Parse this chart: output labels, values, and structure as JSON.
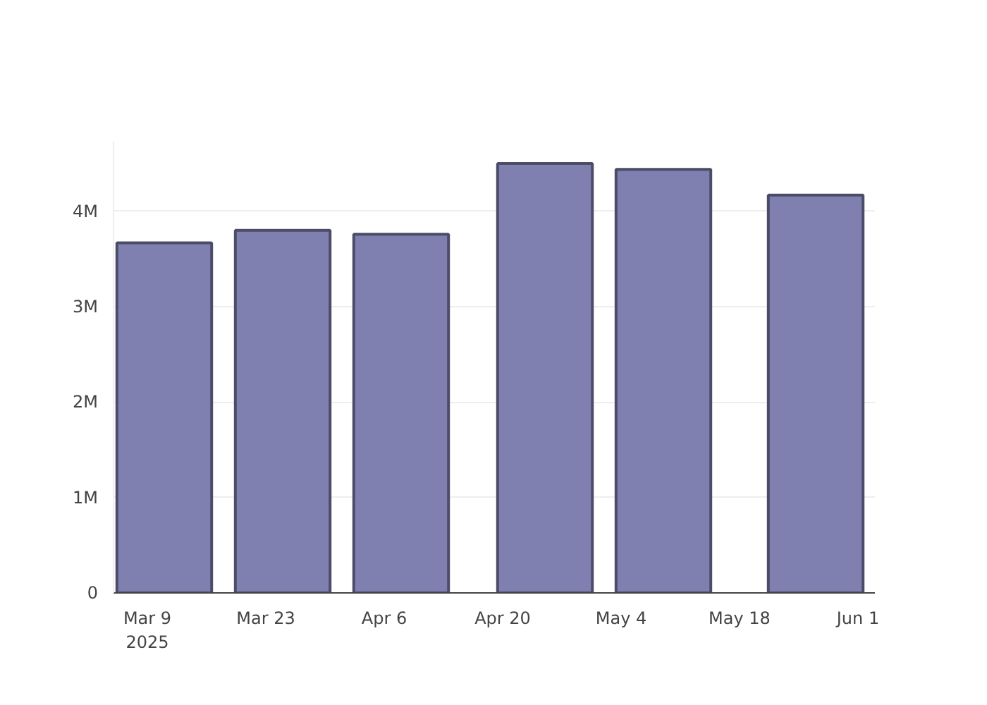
{
  "chart_data": {
    "type": "bar",
    "x": [
      "2025-03-11",
      "2025-03-25",
      "2025-04-08",
      "2025-04-25",
      "2025-05-09",
      "2025-05-27"
    ],
    "values": [
      3670000,
      3800000,
      3760000,
      4500000,
      4440000,
      4170000
    ],
    "color": "#7f80b0",
    "xlim": [
      "2025-03-05",
      "2025-06-03"
    ],
    "xticks": [
      {
        "value": "2025-03-09",
        "label": "Mar 9\n2025"
      },
      {
        "value": "2025-03-23",
        "label": "Mar 23"
      },
      {
        "value": "2025-04-06",
        "label": "Apr 6"
      },
      {
        "value": "2025-04-20",
        "label": "Apr 20"
      },
      {
        "value": "2025-05-04",
        "label": "May 4"
      },
      {
        "value": "2025-05-18",
        "label": "May 18"
      },
      {
        "value": "2025-06-01",
        "label": "Jun 1"
      }
    ],
    "ylim": [
      0,
      4730000
    ],
    "yticks": [
      {
        "value": 0,
        "label": "0"
      },
      {
        "value": 1000000,
        "label": "1M"
      },
      {
        "value": 2000000,
        "label": "2M"
      },
      {
        "value": 3000000,
        "label": "3M"
      },
      {
        "value": 4000000,
        "label": "4M"
      }
    ],
    "grid": "y"
  }
}
